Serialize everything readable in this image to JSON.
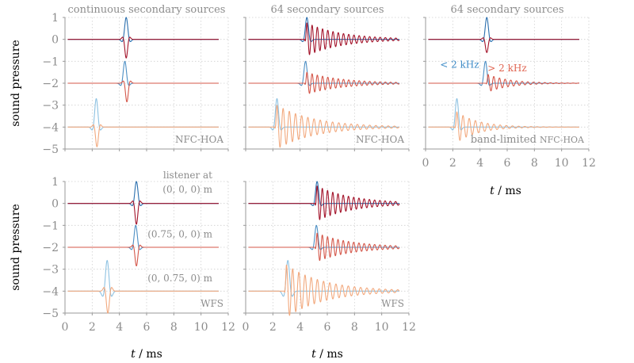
{
  "chart_data": {
    "type": "line",
    "ylabel": "sound pressure",
    "xlabel_var": "t",
    "xlabel_unit": "/ ms",
    "xlim": [
      0,
      12
    ],
    "ylim": [
      -5,
      1
    ],
    "xticks": [
      "0",
      "2",
      "4",
      "6",
      "8",
      "10",
      "12"
    ],
    "yticks": [
      "1",
      "0",
      "−1",
      "−2",
      "−3",
      "−4",
      "−5"
    ],
    "colors": {
      "dark_blue": "#2a6fae",
      "dark_red": "#a3132a",
      "mid_blue": "#4d8fc4",
      "mid_red": "#d4574a",
      "light_blue": "#8ec2e2",
      "light_red": "#f2a97e",
      "annot_blue": "#3c8ac6",
      "annot_red": "#e06552"
    },
    "panels": [
      {
        "id": "a",
        "title": "continuous secondary sources",
        "corner_label": "NFC-HOA",
        "series": [
          {
            "offset": 0,
            "kind": "pulse",
            "t0": 4.5,
            "amp": 1.0,
            "width": 0.17,
            "freq": 1.1,
            "color": "dark_blue"
          },
          {
            "offset": 0,
            "kind": "pulse",
            "t0": 4.5,
            "amp": -0.85,
            "width": 0.15,
            "freq": 1.3,
            "color": "dark_red"
          },
          {
            "offset": -2,
            "kind": "pulse",
            "t0": 4.4,
            "amp": 1.0,
            "width": 0.17,
            "freq": 1.1,
            "color": "mid_blue"
          },
          {
            "offset": -2,
            "kind": "pulse",
            "t0": 4.55,
            "amp": -0.85,
            "width": 0.15,
            "freq": 1.3,
            "color": "mid_red"
          },
          {
            "offset": -4,
            "kind": "pulse",
            "t0": 2.3,
            "amp": 1.3,
            "width": 0.17,
            "freq": 1.1,
            "color": "light_blue"
          },
          {
            "offset": -4,
            "kind": "pulse",
            "t0": 2.35,
            "amp": -0.9,
            "width": 0.15,
            "freq": 1.3,
            "color": "light_red"
          }
        ]
      },
      {
        "id": "b",
        "title": "64 secondary sources",
        "corner_label": "NFC-HOA",
        "series": [
          {
            "offset": 0,
            "kind": "pulse",
            "t0": 4.5,
            "amp": 1.0,
            "width": 0.17,
            "freq": 1.1,
            "color": "dark_blue"
          },
          {
            "offset": 0,
            "kind": "ring",
            "t0": 4.5,
            "amp": 0.75,
            "tau": 2.6,
            "freq": 2.6,
            "color": "dark_red"
          },
          {
            "offset": -2,
            "kind": "pulse",
            "t0": 4.4,
            "amp": 1.0,
            "width": 0.17,
            "freq": 1.1,
            "color": "mid_blue"
          },
          {
            "offset": -2,
            "kind": "ring",
            "t0": 4.5,
            "amp": 0.5,
            "tau": 2.6,
            "freq": 2.6,
            "color": "mid_red"
          },
          {
            "offset": -4,
            "kind": "pulse",
            "t0": 2.3,
            "amp": 1.3,
            "width": 0.17,
            "freq": 1.1,
            "color": "light_blue"
          },
          {
            "offset": -4,
            "kind": "ring",
            "t0": 2.3,
            "amp": 1.0,
            "tau": 2.8,
            "freq": 2.2,
            "color": "light_red"
          }
        ]
      },
      {
        "id": "c",
        "title": "64 secondary sources",
        "corner_label": "band-limited NFC-HOA",
        "corner_label_parts": [
          "band-limited",
          "NFC-HOA"
        ],
        "annotations": [
          {
            "text": "< 2 kHz",
            "color": "annot_blue",
            "x": 2.5,
            "y": -1.3
          },
          {
            "text": "> 2 kHz",
            "color": "annot_red",
            "x": 6.0,
            "y": -1.45
          }
        ],
        "series": [
          {
            "offset": 0,
            "kind": "pulse",
            "t0": 4.5,
            "amp": 1.0,
            "width": 0.17,
            "freq": 1.1,
            "color": "dark_blue"
          },
          {
            "offset": 0,
            "kind": "pulse",
            "t0": 4.5,
            "amp": -0.6,
            "width": 0.15,
            "freq": 1.3,
            "color": "dark_red"
          },
          {
            "offset": -2,
            "kind": "pulse",
            "t0": 4.4,
            "amp": 1.0,
            "width": 0.17,
            "freq": 1.1,
            "color": "mid_blue"
          },
          {
            "offset": -2,
            "kind": "ring",
            "t0": 4.6,
            "amp": 0.4,
            "tau": 1.6,
            "freq": 2.4,
            "color": "mid_red"
          },
          {
            "offset": -4,
            "kind": "pulse",
            "t0": 2.3,
            "amp": 1.3,
            "width": 0.17,
            "freq": 1.1,
            "color": "light_blue"
          },
          {
            "offset": -4,
            "kind": "ring",
            "t0": 2.3,
            "amp": 0.7,
            "tau": 1.6,
            "freq": 2.2,
            "color": "light_red"
          }
        ]
      },
      {
        "id": "d",
        "title": "",
        "corner_label": "WFS",
        "listener_title": "listener at",
        "listener_positions": [
          {
            "text": "(0, 0, 0) m",
            "y": 0.5
          },
          {
            "text": "(0.75, 0, 0) m",
            "y": -1.55
          },
          {
            "text": "(0, 0.75, 0) m",
            "y": -3.55
          }
        ],
        "series": [
          {
            "offset": 0,
            "kind": "pulse",
            "t0": 5.25,
            "amp": 1.0,
            "width": 0.17,
            "freq": 1.1,
            "color": "dark_blue"
          },
          {
            "offset": 0,
            "kind": "pulse",
            "t0": 5.25,
            "amp": -0.95,
            "width": 0.15,
            "freq": 1.3,
            "color": "dark_red"
          },
          {
            "offset": -2,
            "kind": "pulse",
            "t0": 5.2,
            "amp": 1.0,
            "width": 0.17,
            "freq": 1.1,
            "color": "mid_blue"
          },
          {
            "offset": -2,
            "kind": "pulse",
            "t0": 5.25,
            "amp": -0.85,
            "width": 0.15,
            "freq": 1.3,
            "color": "mid_red"
          },
          {
            "offset": -4,
            "kind": "pulse",
            "t0": 3.1,
            "amp": 1.4,
            "width": 0.2,
            "freq": 1.1,
            "color": "light_blue"
          },
          {
            "offset": -4,
            "kind": "pulse",
            "t0": 3.15,
            "amp": -1.0,
            "width": 0.17,
            "freq": 1.3,
            "color": "light_red"
          }
        ]
      },
      {
        "id": "e",
        "title": "",
        "corner_label": "WFS",
        "series": [
          {
            "offset": 0,
            "kind": "pulse",
            "t0": 5.25,
            "amp": 1.0,
            "width": 0.17,
            "freq": 1.1,
            "color": "dark_blue"
          },
          {
            "offset": 0,
            "kind": "ring",
            "t0": 5.25,
            "amp": 0.8,
            "tau": 2.6,
            "freq": 2.6,
            "color": "dark_red"
          },
          {
            "offset": -2,
            "kind": "pulse",
            "t0": 5.2,
            "amp": 1.0,
            "width": 0.17,
            "freq": 1.1,
            "color": "mid_blue"
          },
          {
            "offset": -2,
            "kind": "ring",
            "t0": 5.25,
            "amp": 0.65,
            "tau": 2.6,
            "freq": 2.6,
            "color": "mid_red"
          },
          {
            "offset": -4,
            "kind": "pulse",
            "t0": 3.1,
            "amp": 1.4,
            "width": 0.2,
            "freq": 1.1,
            "color": "light_blue"
          },
          {
            "offset": -4,
            "kind": "ring",
            "t0": 3.0,
            "amp": 1.2,
            "tau": 2.8,
            "freq": 2.2,
            "color": "light_red"
          }
        ]
      }
    ]
  }
}
